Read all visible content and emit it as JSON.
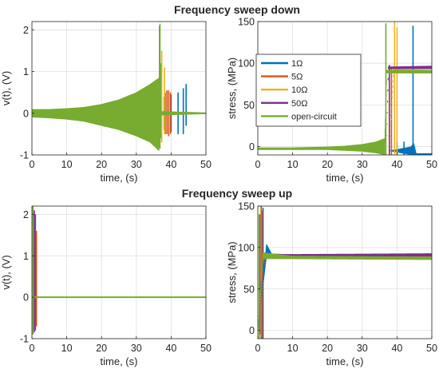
{
  "figure": {
    "row_titles": [
      "Frequency sweep down",
      "Frequency sweep up"
    ]
  },
  "series_styles": [
    {
      "name": "1Ω",
      "color": "#0072BD"
    },
    {
      "name": "5Ω",
      "color": "#D95319"
    },
    {
      "name": "10Ω",
      "color": "#EDB120"
    },
    {
      "name": "50Ω",
      "color": "#7E2F8E"
    },
    {
      "name": "open-circuit",
      "color": "#77AC30"
    }
  ],
  "chart_data": [
    {
      "type": "line",
      "panel": "top-left",
      "title": "",
      "xlabel": "time, (s)",
      "ylabel": "v(t), (V)",
      "xlim": [
        0,
        50
      ],
      "ylim": [
        -1,
        2.2
      ],
      "xticks": [
        0,
        10,
        20,
        30,
        40,
        50
      ],
      "yticks": [
        -1,
        0,
        1,
        2
      ],
      "grid": true,
      "legend": null,
      "series": [
        {
          "envelope": [
            [
              0,
              0,
              0
            ],
            [
              45,
              0,
              0
            ],
            [
              50,
              0,
              0
            ]
          ],
          "bursts": [
            {
              "t": 38.0,
              "hi": 0.4,
              "lo": -0.4
            },
            {
              "t": 40.0,
              "hi": 0.45,
              "lo": -0.45
            },
            {
              "t": 42.0,
              "hi": 0.5,
              "lo": -0.5
            },
            {
              "t": 43.5,
              "hi": 0.6,
              "lo": -0.5
            },
            {
              "t": 44.3,
              "hi": 0.7,
              "lo": -0.3
            }
          ]
        },
        {
          "envelope": [
            [
              0,
              0,
              0
            ],
            [
              50,
              0,
              0
            ]
          ],
          "bursts": [
            {
              "t": 38.3,
              "hi": 0.5,
              "lo": -0.5
            },
            {
              "t": 38.8,
              "hi": 0.55,
              "lo": -0.5
            },
            {
              "t": 39.3,
              "hi": 0.55,
              "lo": -0.55
            },
            {
              "t": 39.8,
              "hi": 0.5,
              "lo": -0.5
            }
          ]
        },
        {
          "envelope": [
            [
              0,
              0,
              0
            ],
            [
              50,
              0,
              0
            ]
          ],
          "bursts": [
            {
              "t": 37.3,
              "hi": 1.5,
              "lo": -0.7
            },
            {
              "t": 38.1,
              "hi": 1.1,
              "lo": -0.5
            }
          ]
        },
        {
          "envelope": [
            [
              0,
              0,
              0
            ],
            [
              50,
              0,
              0
            ]
          ],
          "bursts": [
            {
              "t": 36.7,
              "hi": 2.1,
              "lo": -0.8
            }
          ]
        },
        {
          "envelope": [
            [
              0,
              0.1,
              -0.1
            ],
            [
              5,
              0.1,
              -0.12
            ],
            [
              10,
              0.12,
              -0.15
            ],
            [
              15,
              0.15,
              -0.2
            ],
            [
              20,
              0.22,
              -0.3
            ],
            [
              25,
              0.33,
              -0.4
            ],
            [
              30,
              0.5,
              -0.55
            ],
            [
              34,
              0.7,
              -0.7
            ],
            [
              36.5,
              0.85,
              -0.9
            ],
            [
              37,
              0.05,
              -0.05
            ],
            [
              50,
              0.02,
              -0.02
            ]
          ],
          "bursts": [
            {
              "t": 36.8,
              "hi": 2.15,
              "lo": -0.85
            },
            {
              "t": 37.0,
              "hi": 1.2,
              "lo": -0.6
            }
          ]
        }
      ]
    },
    {
      "type": "line",
      "panel": "top-right",
      "title": "",
      "xlabel": "time, (s)",
      "ylabel": "stress, (MPa)",
      "xlim": [
        0,
        50
      ],
      "ylim": [
        -10,
        150
      ],
      "xticks": [
        0,
        10,
        20,
        30,
        40,
        50
      ],
      "yticks": [
        0,
        50,
        100,
        150
      ],
      "grid": true,
      "legend": "top-right",
      "series": [
        {
          "name": "1Ω",
          "envelope": [
            [
              0,
              0,
              0
            ],
            [
              37,
              0,
              0
            ],
            [
              37.5,
              -5,
              -5
            ],
            [
              44,
              0,
              -10
            ],
            [
              44.8,
              4,
              -10
            ],
            [
              45.5,
              -8,
              -12
            ],
            [
              50,
              -8,
              -12
            ]
          ],
          "bursts": [
            {
              "t": 44.6,
              "hi": 145,
              "lo": -10
            },
            {
              "t": 40,
              "hi": 5,
              "lo": -10
            },
            {
              "t": 42,
              "hi": 6,
              "lo": -12
            }
          ]
        },
        {
          "name": "5Ω",
          "envelope": [
            [
              0,
              0,
              0
            ],
            [
              38,
              0,
              0
            ],
            [
              38.5,
              90,
              88
            ],
            [
              50,
              91,
              88
            ]
          ],
          "bursts": [
            {
              "t": 38.4,
              "hi": 95,
              "lo": -12
            }
          ]
        },
        {
          "name": "10Ω",
          "envelope": [
            [
              0,
              0,
              0
            ],
            [
              38,
              0,
              0
            ],
            [
              39,
              93,
              90
            ],
            [
              50,
              92,
              90
            ]
          ],
          "bursts": [
            {
              "t": 39.3,
              "hi": 150,
              "lo": -12
            },
            {
              "t": 40.0,
              "hi": 143,
              "lo": -12
            }
          ]
        },
        {
          "name": "50Ω",
          "envelope": [
            [
              0,
              0,
              0
            ],
            [
              37,
              0,
              0
            ],
            [
              37.5,
              96,
              93
            ],
            [
              50,
              97,
              93
            ]
          ],
          "bursts": [
            {
              "t": 37.8,
              "hi": 98,
              "lo": -10
            }
          ]
        },
        {
          "name": "open-circuit",
          "envelope": [
            [
              0,
              -1,
              -4
            ],
            [
              10,
              -1,
              -4
            ],
            [
              20,
              0,
              -4
            ],
            [
              25,
              1,
              -5
            ],
            [
              30,
              3,
              -6
            ],
            [
              34,
              6,
              -8
            ],
            [
              36.5,
              10,
              -10
            ],
            [
              37,
              92,
              88
            ],
            [
              50,
              92,
              88
            ]
          ],
          "bursts": [
            {
              "t": 36.8,
              "hi": 148,
              "lo": -10
            }
          ]
        }
      ]
    },
    {
      "type": "line",
      "panel": "bottom-left",
      "title": "",
      "xlabel": "time, (s)",
      "ylabel": "v(t), (V)",
      "xlim": [
        0,
        50
      ],
      "ylim": [
        -1,
        2.2
      ],
      "xticks": [
        0,
        10,
        20,
        30,
        40,
        50
      ],
      "yticks": [
        -1,
        0,
        1,
        2
      ],
      "grid": true,
      "legend": null,
      "series": [
        {
          "envelope": [
            [
              0,
              0,
              0
            ],
            [
              50,
              0,
              0
            ]
          ],
          "bursts": [
            {
              "t": 1.0,
              "hi": 2.0,
              "lo": -0.8
            }
          ]
        },
        {
          "envelope": [
            [
              0,
              0,
              0
            ],
            [
              50,
              0,
              0
            ]
          ],
          "bursts": [
            {
              "t": 1.3,
              "hi": 1.6,
              "lo": -0.7
            }
          ]
        },
        {
          "envelope": [
            [
              0,
              0,
              0
            ],
            [
              50,
              0,
              0
            ]
          ],
          "bursts": [
            {
              "t": 0.5,
              "hi": 2.05,
              "lo": -0.8
            }
          ]
        },
        {
          "envelope": [
            [
              0,
              0,
              0
            ],
            [
              50,
              0,
              0
            ]
          ],
          "bursts": [
            {
              "t": 0.7,
              "hi": 2.1,
              "lo": -0.85
            }
          ]
        },
        {
          "envelope": [
            [
              0,
              0.02,
              -0.02
            ],
            [
              50,
              0.02,
              -0.02
            ]
          ],
          "bursts": [
            {
              "t": 0.3,
              "hi": 2.2,
              "lo": -0.9
            }
          ]
        }
      ]
    },
    {
      "type": "line",
      "panel": "bottom-right",
      "title": "",
      "xlabel": "time, (s)",
      "ylabel": "stress, (MPa)",
      "xlim": [
        0,
        50
      ],
      "ylim": [
        -10,
        150
      ],
      "xticks": [
        0,
        10,
        20,
        30,
        40,
        50
      ],
      "yticks": [
        0,
        50,
        100,
        150
      ],
      "grid": true,
      "legend": null,
      "series": [
        {
          "envelope": [
            [
              0,
              0,
              0
            ],
            [
              2.5,
              104,
              90
            ],
            [
              4,
              92,
              88
            ],
            [
              50,
              90,
              87
            ]
          ],
          "bursts": [
            {
              "t": 1.0,
              "hi": 150,
              "lo": -10
            },
            {
              "t": 1.5,
              "hi": 148,
              "lo": -15
            }
          ]
        },
        {
          "envelope": [
            [
              0,
              0,
              0
            ],
            [
              2,
              92,
              88
            ],
            [
              50,
              90,
              87
            ]
          ],
          "bursts": [
            {
              "t": 1.2,
              "hi": 145,
              "lo": -12
            }
          ]
        },
        {
          "envelope": [
            [
              0,
              0,
              0
            ],
            [
              2,
              92,
              88
            ],
            [
              50,
              90,
              87
            ]
          ],
          "bursts": [
            {
              "t": 0.8,
              "hi": 148,
              "lo": -8
            }
          ]
        },
        {
          "envelope": [
            [
              0,
              0,
              0
            ],
            [
              2,
              93,
              89
            ],
            [
              8,
              92,
              89
            ],
            [
              50,
              93,
              89
            ]
          ],
          "bursts": [
            {
              "t": 0.6,
              "hi": 140,
              "lo": -5
            }
          ]
        },
        {
          "envelope": [
            [
              0,
              0,
              0
            ],
            [
              1.5,
              94,
              86
            ],
            [
              10,
              90,
              86
            ],
            [
              50,
              89,
              85
            ]
          ],
          "bursts": [
            {
              "t": 0.4,
              "hi": 140,
              "lo": -15
            }
          ]
        }
      ]
    }
  ]
}
